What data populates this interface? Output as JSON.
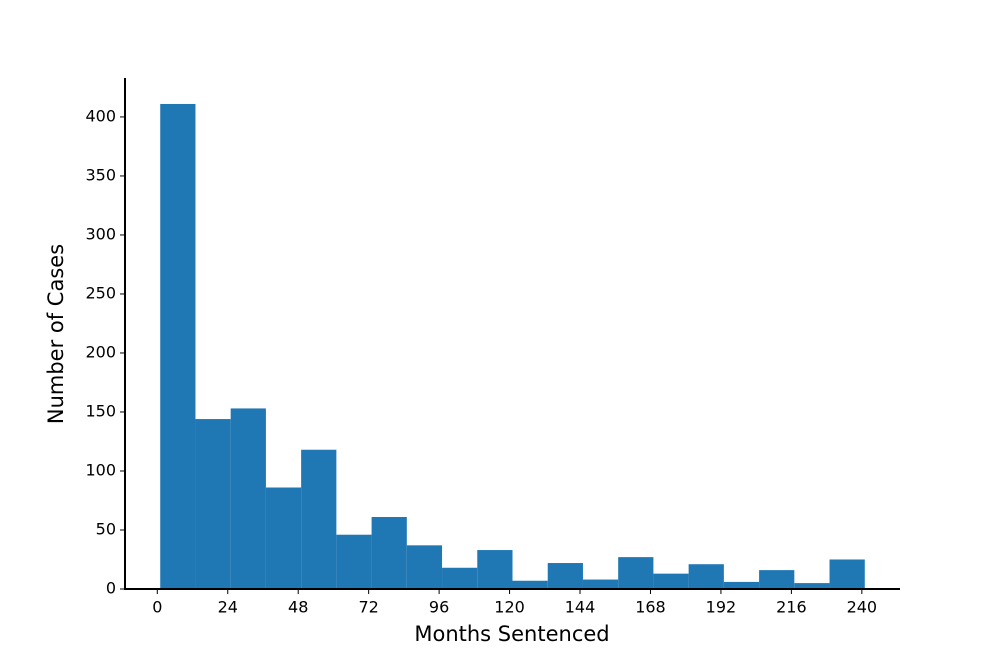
{
  "chart_data": {
    "type": "histogram",
    "xlabel": "Months Sentenced",
    "ylabel": "Number of Cases",
    "bins": [
      1,
      13,
      25,
      37,
      49,
      61,
      73,
      85,
      97,
      109,
      121,
      133,
      145,
      157,
      169,
      181,
      193,
      205,
      217,
      229,
      241
    ],
    "counts": [
      411,
      144,
      153,
      86,
      118,
      46,
      61,
      37,
      18,
      33,
      7,
      22,
      8,
      27,
      13,
      21,
      6,
      16,
      5,
      25
    ],
    "color": "#1f77b4",
    "xlim": [
      -11,
      253
    ],
    "ylim": [
      0,
      433
    ],
    "xticks": [
      0,
      24,
      48,
      72,
      96,
      120,
      144,
      168,
      192,
      216,
      240
    ],
    "yticks": [
      0,
      50,
      100,
      150,
      200,
      250,
      300,
      350,
      400
    ]
  }
}
